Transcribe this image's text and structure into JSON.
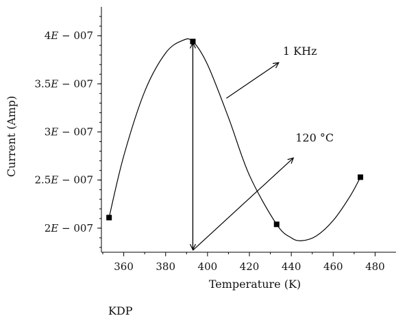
{
  "chart_data": {
    "type": "line",
    "xlabel": "Temperature (K)",
    "ylabel": "Current (Amp)",
    "xlim": [
      350,
      490
    ],
    "ylim": [
      1.75e-07,
      4.3e-07
    ],
    "x_ticks": [
      360,
      380,
      400,
      420,
      440,
      460,
      480
    ],
    "x_tick_labels": [
      "360",
      "380",
      "400",
      "420",
      "440",
      "460",
      "480"
    ],
    "y_ticks": [
      2e-07,
      2.5e-07,
      3e-07,
      3.5e-07,
      4e-07
    ],
    "y_tick_labels": [
      {
        "mant": "2",
        "exp": "007"
      },
      {
        "mant": "2.5",
        "exp": "007"
      },
      {
        "mant": "3",
        "exp": "007"
      },
      {
        "mant": "3.5",
        "exp": "007"
      },
      {
        "mant": "4",
        "exp": "007"
      }
    ],
    "series": [
      {
        "points": [
          {
            "x": 353,
            "y": 2.11e-07
          },
          {
            "x": 393,
            "y": 3.94e-07
          },
          {
            "x": 433,
            "y": 2.04e-07
          },
          {
            "x": 473,
            "y": 2.53e-07
          }
        ],
        "marker": "square",
        "color": "#000000"
      }
    ],
    "curve": [
      {
        "x": 353,
        "y": 2.11e-07
      },
      {
        "x": 360,
        "y": 2.75e-07
      },
      {
        "x": 370,
        "y": 3.42e-07
      },
      {
        "x": 380,
        "y": 3.82e-07
      },
      {
        "x": 388,
        "y": 3.95e-07
      },
      {
        "x": 393,
        "y": 3.94e-07
      },
      {
        "x": 400,
        "y": 3.7e-07
      },
      {
        "x": 410,
        "y": 3.15e-07
      },
      {
        "x": 420,
        "y": 2.55e-07
      },
      {
        "x": 433,
        "y": 2.04e-07
      },
      {
        "x": 440,
        "y": 1.9e-07
      },
      {
        "x": 445,
        "y": 1.87e-07
      },
      {
        "x": 452,
        "y": 1.92e-07
      },
      {
        "x": 460,
        "y": 2.08e-07
      },
      {
        "x": 468,
        "y": 2.33e-07
      },
      {
        "x": 473,
        "y": 2.53e-07
      }
    ],
    "annotations": [
      {
        "text": "1 KHz",
        "text_x": 436,
        "text_y": 3.8e-07,
        "arrow_from": [
          409,
          3.35e-07
        ],
        "arrow_to": [
          434,
          3.72e-07
        ]
      },
      {
        "text": "120 °C",
        "text_x": 442,
        "text_y": 2.9e-07,
        "arrow_from": [
          393,
          1.77e-07
        ],
        "arrow_to": [
          441,
          2.73e-07
        ]
      }
    ],
    "vertical_arrow": {
      "x": 393,
      "y_from": 1.77e-07,
      "y_to": 3.94e-07
    }
  },
  "caption": "KDP"
}
